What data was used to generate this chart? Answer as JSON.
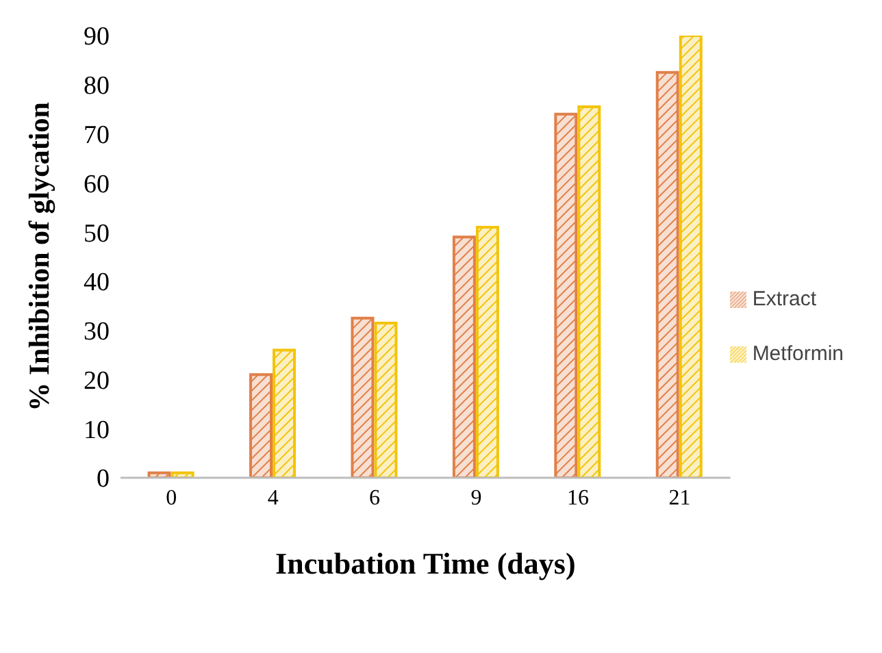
{
  "chart_data": {
    "type": "bar",
    "xlabel": "Incubation Time  (days)",
    "ylabel": "%  Inhibition of glycation",
    "categories": [
      "0",
      "4",
      "6",
      "9",
      "16",
      "21"
    ],
    "series": [
      {
        "name": "Extract",
        "color": "#e0804a",
        "values": [
          1,
          21,
          32.5,
          49,
          74,
          82.5
        ]
      },
      {
        "name": "Metformin",
        "color": "#f2c40c",
        "values": [
          1,
          26,
          31.5,
          51,
          75.5,
          90
        ]
      }
    ],
    "ylim": [
      0,
      90
    ],
    "yticks": [
      0,
      10,
      20,
      30,
      40,
      50,
      60,
      70,
      80,
      90
    ],
    "grid": false,
    "legend": "right"
  }
}
